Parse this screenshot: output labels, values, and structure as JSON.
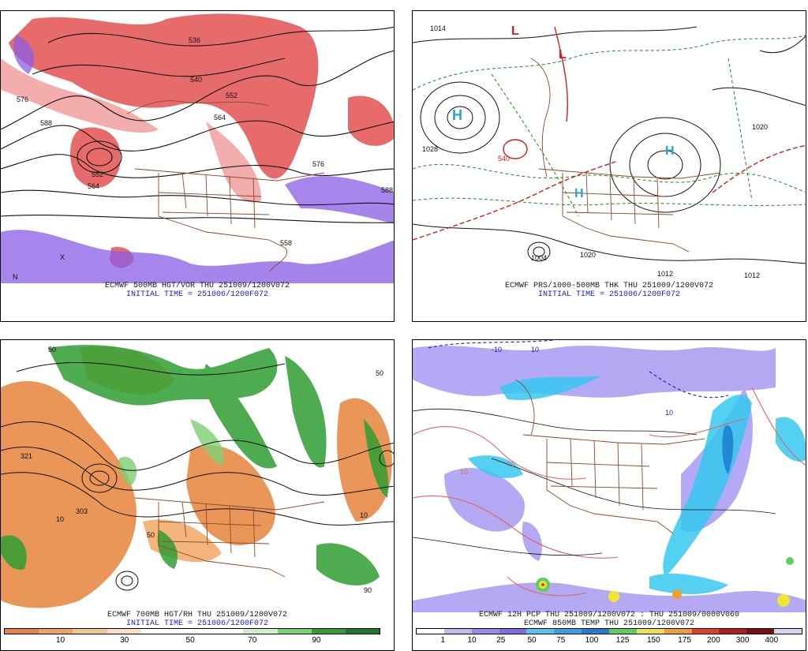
{
  "panels": [
    {
      "id": "p1",
      "caption_line1": "ECMWF 500MB HGT/VOR THU 251009/1200V072",
      "caption_line2": "INITIAL TIME = 251006/1200F072",
      "contour_labels": [
        "576",
        "588",
        "552",
        "564",
        "540",
        "552",
        "564",
        "576",
        "536",
        "588",
        "558",
        "X",
        "N"
      ]
    },
    {
      "id": "p2",
      "caption_line1": "ECMWF PRS/1000-500MB THK THU 251009/1200V072",
      "caption_line2": "INITIAL TIME = 251006/1200F072",
      "contour_labels": [
        "1014",
        "1020",
        "1028",
        "540",
        "1004",
        "1012",
        "1012",
        "1020",
        "H",
        "H",
        "H",
        "L",
        "L"
      ]
    },
    {
      "id": "p3",
      "caption_line1": "ECMWF 700MB HGT/RH THU 251009/1200V072",
      "caption_line2": "INITIAL TIME = 251006/1200F072",
      "contour_labels": [
        "321",
        "303",
        "10",
        "50",
        "50",
        "10",
        "50",
        "90"
      ]
    },
    {
      "id": "p4",
      "caption_line1": "ECMWF 12H PCP THU 251009/1200V072 : THU 251009/0000V060",
      "caption_line2": "ECMWF 850MB TEMP THU 251009/1200V072",
      "contour_labels": [
        "10",
        "10",
        "10",
        "10",
        "-10"
      ]
    }
  ],
  "colorbars": {
    "rh": {
      "colors": [
        "#e8843c",
        "#f0a35a",
        "#f7c48a",
        "#fbe0c0",
        "#ffffff",
        "#ffffff",
        "#ffffff",
        "#d2f0c8",
        "#7fcf73",
        "#2f9e32",
        "#1d7a22"
      ],
      "ticks": [
        "10",
        "30",
        "50",
        "70",
        "90"
      ]
    },
    "pcp": {
      "colors": [
        "#ffffff",
        "#c8b4f0",
        "#9b8cf0",
        "#7f70e6",
        "#4fc8f0",
        "#2ea6e6",
        "#1e82d2",
        "#5ad25a",
        "#f0e632",
        "#f0a028",
        "#e63c28",
        "#b41e1e",
        "#7a0f0f",
        "#dcd2f5"
      ],
      "ticks": [
        "1",
        "10",
        "25",
        "50",
        "75",
        "100",
        "125",
        "150",
        "175",
        "200",
        "300",
        "400"
      ]
    }
  },
  "colors": {
    "vorticity_red": "#e03a3a",
    "vorticity_purple": "#8a5ce6",
    "country_lines": "#8b4a2b",
    "contours": "#111111",
    "thickness_green": "#1e8c1e",
    "thickness_red": "#d21e1e",
    "rh_green": "#2f9e32",
    "rh_orange": "#e8843c",
    "pcp_cyan": "#36c8f0",
    "pcp_violet": "#9b8cf0",
    "temp_red": "#e06464",
    "caption_blue": "#1a1ad2"
  }
}
